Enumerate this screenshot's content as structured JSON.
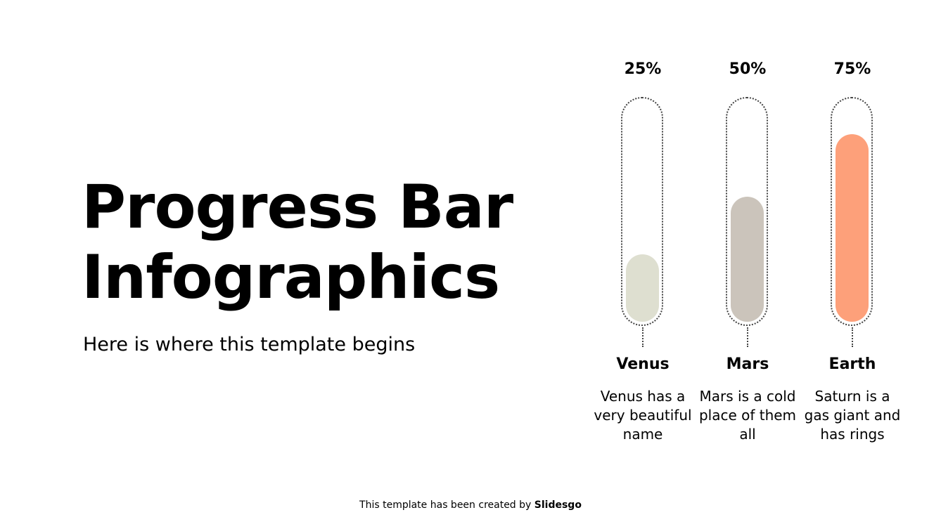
{
  "title_lines": [
    "Progress Bar",
    "Infographics"
  ],
  "subtitle": "Here is where this template begins",
  "bars": [
    {
      "percent_label": "25%",
      "value": 25,
      "name": "Venus",
      "description": "Venus has a very beautiful name",
      "color": "#DEDFD0"
    },
    {
      "percent_label": "50%",
      "value": 50,
      "name": "Mars",
      "description": "Mars is a cold place of them all",
      "color": "#CBC4BB"
    },
    {
      "percent_label": "75%",
      "value": 75,
      "name": "Earth",
      "description": "Saturn is a gas giant and has rings",
      "color": "#FDA07A"
    }
  ],
  "footer": {
    "text": "This template has been created by ",
    "brand": "Slidesgo"
  }
}
